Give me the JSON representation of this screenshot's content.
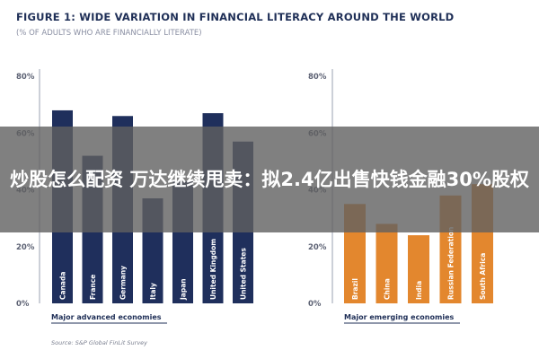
{
  "chart_data": {
    "title": "FIGURE 1: WIDE VARIATION IN FINANCIAL LITERACY AROUND THE WORLD",
    "subtitle": "(% OF ADULTS WHO ARE FINANCIALLY LITERATE)",
    "source": "Source: S&P Global FinLit Survey",
    "charts": [
      {
        "type": "bar",
        "group_label": "Major advanced economies",
        "categories": [
          "Canada",
          "France",
          "Germany",
          "Italy",
          "Japan",
          "United Kingdom",
          "United States"
        ],
        "values": [
          68,
          52,
          66,
          37,
          43,
          67,
          57
        ],
        "ylim": [
          0,
          80
        ],
        "yticks": [
          "0%",
          "20%",
          "40%",
          "60%",
          "80%"
        ],
        "color": "#1f2f5c"
      },
      {
        "type": "bar",
        "group_label": "Major emerging economies",
        "categories": [
          "Brazil",
          "China",
          "India",
          "Russian Federation",
          "South Africa"
        ],
        "values": [
          35,
          28,
          24,
          38,
          42
        ],
        "ylim": [
          0,
          80
        ],
        "yticks": [
          "0%",
          "20%",
          "40%",
          "60%",
          "80%"
        ],
        "color": "#e3872e"
      }
    ]
  },
  "banner": {
    "text": "炒股怎么配资 万达继续甩卖：拟2.4亿出售快钱金融30%股权"
  }
}
